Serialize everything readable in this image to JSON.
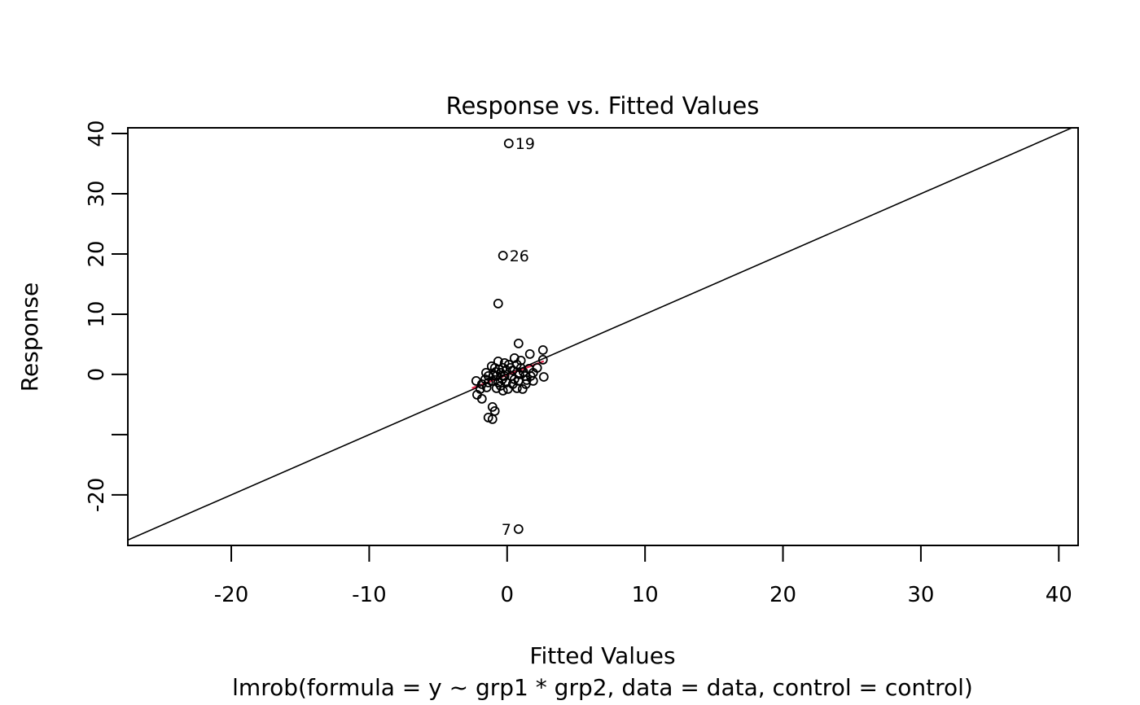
{
  "colors": {
    "foreground": "#000000",
    "background": "#ffffff",
    "fit_line": "#e2274c"
  },
  "chart_data": {
    "type": "scatter",
    "title": "Response vs. Fitted Values",
    "xlabel": "Fitted Values",
    "ylabel": "Response",
    "subtitle": "lmrob(formula = y ~ grp1 * grp2, data = data, control = control)",
    "xlim": [
      -27.5,
      41.4
    ],
    "ylim": [
      -28.4,
      40.95
    ],
    "grid": false,
    "legend": "none",
    "x_ticks": [
      {
        "value": -20,
        "label": "-20"
      },
      {
        "value": -10,
        "label": "-10"
      },
      {
        "value": 0,
        "label": "0"
      },
      {
        "value": 10,
        "label": "10"
      },
      {
        "value": 20,
        "label": "20"
      },
      {
        "value": 30,
        "label": "30"
      },
      {
        "value": 40,
        "label": "40"
      }
    ],
    "y_ticks": [
      {
        "value": 40,
        "label": "40"
      },
      {
        "value": 30,
        "label": "30"
      },
      {
        "value": 20,
        "label": "20"
      },
      {
        "value": 10,
        "label": "10"
      },
      {
        "value": 0,
        "label": "0"
      },
      {
        "value": -10,
        "label": ""
      },
      {
        "value": -20,
        "label": "-20"
      }
    ],
    "identity_line": {
      "slope": 1,
      "intercept": 0
    },
    "fit_segment": {
      "x1": -2.55,
      "y1": -2.3,
      "x2": 2.66,
      "y2": 2.2
    },
    "labeled_points": [
      {
        "label": "19",
        "x": 0.12,
        "y": 38.35,
        "side": "right"
      },
      {
        "label": "26",
        "x": -0.3,
        "y": 19.73,
        "side": "right"
      },
      {
        "label": "7",
        "x": 0.83,
        "y": -25.68,
        "side": "left"
      }
    ],
    "points": [
      [
        -0.65,
        11.76
      ],
      [
        0.83,
        5.14
      ],
      [
        0.53,
        2.7
      ],
      [
        -1.12,
        1.35
      ],
      [
        -0.59,
        0.81
      ],
      [
        -0.3,
        1.08
      ],
      [
        0.24,
        1.08
      ],
      [
        -1.53,
        0.27
      ],
      [
        -1.0,
        -0.14
      ],
      [
        -2.24,
        -1.08
      ],
      [
        -1.83,
        -1.62
      ],
      [
        -0.77,
        -2.3
      ],
      [
        -0.3,
        -2.7
      ],
      [
        -2.18,
        -3.38
      ],
      [
        -1.83,
        -4.05
      ],
      [
        -1.06,
        -5.41
      ],
      [
        -0.89,
        -6.08
      ],
      [
        -1.36,
        -7.16
      ],
      [
        -1.06,
        -7.43
      ],
      [
        2.6,
        4.05
      ],
      [
        1.65,
        3.38
      ],
      [
        2.6,
        2.43
      ],
      [
        1.0,
        2.3
      ],
      [
        0.71,
        1.62
      ],
      [
        1.59,
        0.95
      ],
      [
        1.18,
        0.41
      ],
      [
        2.66,
        -0.41
      ],
      [
        0.83,
        -1.08
      ],
      [
        1.42,
        -0.95
      ],
      [
        0.71,
        -2.3
      ],
      [
        1.12,
        -2.43
      ],
      [
        -0.65,
        2.16
      ],
      [
        -0.18,
        1.89
      ],
      [
        0.12,
        1.62
      ],
      [
        -0.89,
        1.08
      ],
      [
        -0.06,
        0.68
      ],
      [
        0.41,
        0.68
      ],
      [
        -0.47,
        0.27
      ],
      [
        -1.36,
        -0.27
      ],
      [
        -0.77,
        -0.27
      ],
      [
        -0.18,
        -0.27
      ],
      [
        0.3,
        -0.27
      ],
      [
        0.89,
        0.0
      ],
      [
        1.3,
        -0.27
      ],
      [
        1.89,
        0.27
      ],
      [
        2.18,
        1.08
      ],
      [
        -1.36,
        -1.35
      ],
      [
        -0.65,
        -1.35
      ],
      [
        -0.06,
        -1.35
      ],
      [
        0.41,
        -1.62
      ],
      [
        -0.47,
        -1.89
      ],
      [
        -1.06,
        -1.08
      ],
      [
        -1.59,
        -0.81
      ],
      [
        0.06,
        -2.43
      ],
      [
        0.53,
        -0.81
      ],
      [
        1.0,
        1.08
      ],
      [
        1.71,
        -0.27
      ],
      [
        1.36,
        -1.62
      ],
      [
        1.89,
        -1.08
      ],
      [
        -1.48,
        -2.16
      ],
      [
        -1.95,
        -2.43
      ],
      [
        -0.35,
        -0.81
      ],
      [
        -0.83,
        0.41
      ]
    ]
  }
}
